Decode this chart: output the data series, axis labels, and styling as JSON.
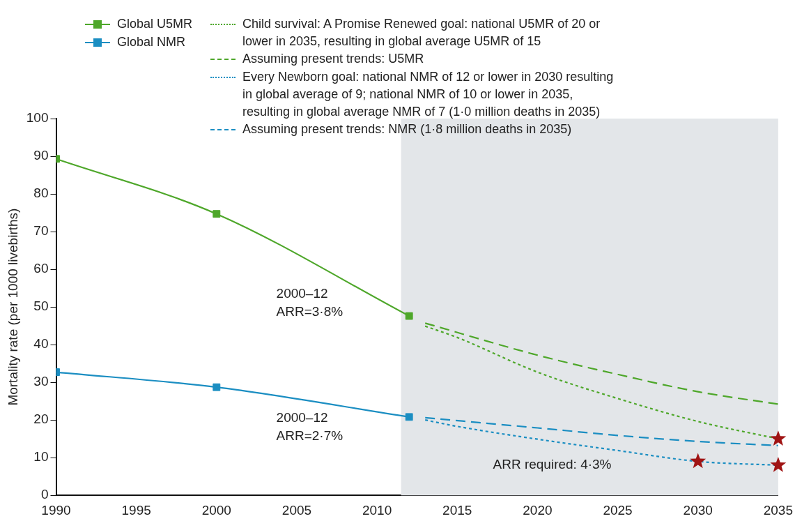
{
  "chart_data": {
    "type": "line",
    "ylabel": "Mortality rate (per 1000 livebirths)",
    "xlim": [
      1990,
      2035
    ],
    "xticks": [
      1990,
      1995,
      2000,
      2005,
      2010,
      2015,
      2020,
      2025,
      2030,
      2035
    ],
    "ylim": [
      0,
      100
    ],
    "yticks": [
      0,
      10,
      20,
      30,
      40,
      50,
      60,
      70,
      80,
      90,
      100
    ],
    "grid": false,
    "legend": "top",
    "bands": [
      {
        "axis": "x",
        "from": 2011.5,
        "to": 2035,
        "color": "#e3e6e9"
      }
    ],
    "series": [
      {
        "name": "Global U5MR",
        "color": "#4ea72a",
        "marker": "square",
        "line_style": "solid",
        "x": [
          1990,
          2000,
          2012
        ],
        "values": [
          89.3,
          74.7,
          47.6
        ]
      },
      {
        "name": "Global NMR",
        "color": "#1b8ec2",
        "marker": "square",
        "line_style": "solid",
        "x": [
          1990,
          2000,
          2012
        ],
        "values": [
          32.7,
          28.7,
          20.8
        ]
      },
      {
        "name": "Child survival: A Promise Renewed goal: national U5MR of 20 or lower in 2035, resulting in global average U5MR of 15",
        "color": "#4ea72a",
        "marker": "none",
        "line_style": "dotted",
        "x": [
          2013,
          2015,
          2020,
          2025,
          2030,
          2035
        ],
        "values": [
          44.9,
          41.9,
          32.7,
          25.7,
          19.6,
          15
        ]
      },
      {
        "name": "Assuming present trends: U5MR",
        "color": "#4ea72a",
        "marker": "none",
        "line_style": "dashed",
        "x": [
          2013,
          2020,
          2025,
          2030,
          2035
        ],
        "values": [
          45.7,
          37.2,
          32.1,
          27.5,
          24.2
        ]
      },
      {
        "name": "Every Newborn goal: national NMR of 12 or lower in 2030 resulting in global average of 9; national NMR of 10 or lower in 2035, resulting in global average NMR of 7 (1·0 million deaths in 2035)",
        "color": "#1b8ec2",
        "marker": "none",
        "line_style": "dotted",
        "x": [
          2013,
          2015,
          2020,
          2025,
          2030,
          2035
        ],
        "values": [
          20.0,
          18.3,
          14.9,
          11.9,
          9,
          8
        ]
      },
      {
        "name": "Assuming present trends: NMR (1·8 million deaths in 2035)",
        "color": "#1b8ec2",
        "marker": "none",
        "line_style": "dashed",
        "x": [
          2013,
          2020,
          2025,
          2030,
          2035
        ],
        "values": [
          20.6,
          17.9,
          15.9,
          14.3,
          13.2
        ]
      },
      {
        "type": "scatter",
        "color": "#a01414",
        "marker": "star",
        "x": [
          2030,
          2035,
          2035
        ],
        "values": [
          9,
          8,
          15
        ]
      }
    ],
    "annotations": [
      "2000–12\nARR=3·8%",
      "2000–12\nARR=2·7%",
      "ARR required: 4·3%"
    ]
  }
}
